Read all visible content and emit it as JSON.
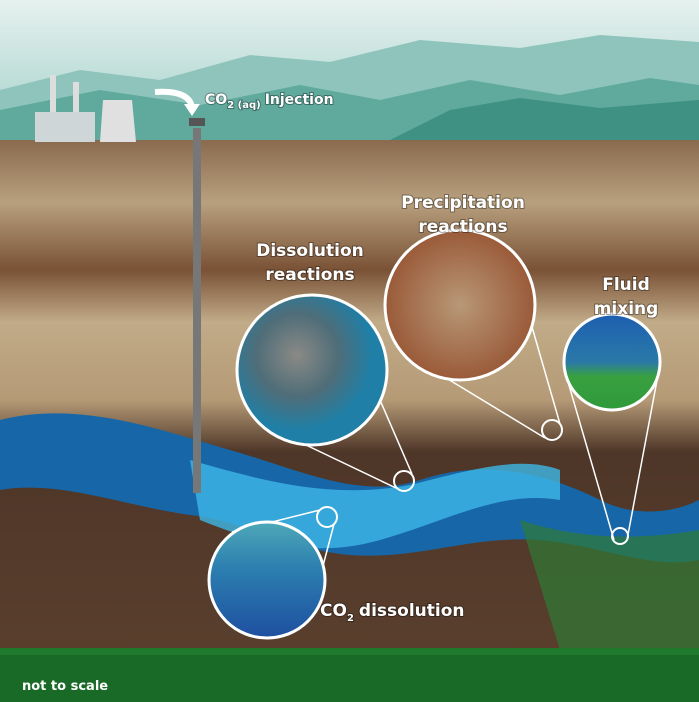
{
  "injection_label": {
    "main": "CO",
    "subscript": "2 (aq)",
    "suffix": "Injection"
  },
  "callouts": [
    {
      "lines": [
        "Dissolution",
        "reactions"
      ]
    },
    {
      "lines": [
        "Precipitation",
        "reactions"
      ]
    },
    {
      "lines": [
        "Fluid",
        "mixing"
      ]
    }
  ],
  "co2_dissolution": {
    "main": "CO",
    "subscript": "2",
    "suffix": "dissolution"
  },
  "note": "not to scale"
}
